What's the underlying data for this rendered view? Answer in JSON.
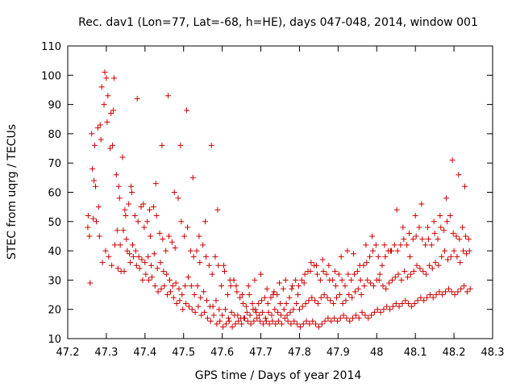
{
  "chart_data": {
    "type": "scatter",
    "title": "Rec. dav1 (Lon=77, Lat=-68, h=HE), days 047-048, 2014, window 001",
    "xlabel": "GPS time / Days of year 2014",
    "ylabel": "STEC from uqrg / TECUs",
    "xlim": [
      47.2,
      48.3
    ],
    "ylim": [
      10,
      110
    ],
    "xticks": [
      "47.2",
      "47.3",
      "47.4",
      "47.5",
      "47.6",
      "47.7",
      "47.8",
      "47.9",
      "48",
      "48.1",
      "48.2",
      "48.3"
    ],
    "yticks": [
      "10",
      "20",
      "30",
      "40",
      "50",
      "60",
      "70",
      "80",
      "90",
      "100",
      "110"
    ],
    "marker": "plus",
    "color": "#cc0000",
    "grid": false,
    "series": [
      {
        "x": [
          47.253,
          47.262,
          47.27,
          47.278,
          47.286,
          47.294,
          47.302,
          47.31,
          47.318,
          47.326,
          47.334,
          47.342,
          47.35,
          47.358,
          47.366,
          47.374,
          47.382,
          47.39,
          47.398,
          47.406,
          47.414,
          47.422,
          47.43,
          47.438,
          47.446,
          47.454,
          47.462,
          47.47,
          47.478,
          47.486,
          47.494,
          47.502,
          47.51,
          47.518,
          47.526,
          47.534,
          47.542,
          47.55,
          47.558,
          47.566,
          47.574,
          47.582,
          47.59,
          47.598,
          47.606,
          47.614,
          47.622,
          47.63,
          47.638,
          47.646,
          47.654,
          47.662,
          47.67,
          47.678,
          47.686,
          47.694,
          47.702,
          47.71,
          47.718,
          47.726,
          47.734,
          47.742,
          47.75,
          47.758,
          47.766,
          47.774,
          47.782,
          47.79,
          47.798,
          47.806,
          47.814,
          47.822,
          47.83,
          47.838,
          47.846,
          47.854,
          47.862,
          47.87,
          47.878,
          47.886,
          47.894,
          47.902,
          47.91,
          47.918,
          47.926,
          47.934,
          47.942,
          47.95,
          47.958,
          47.966,
          47.974,
          47.982,
          47.99,
          47.998,
          48.006,
          48.014,
          48.022,
          48.03,
          48.038,
          48.046,
          48.054,
          48.062,
          48.07,
          48.078,
          48.086,
          48.094,
          48.102,
          48.11,
          48.118,
          48.126,
          48.134,
          48.142,
          48.15,
          48.158,
          48.166,
          48.174,
          48.182,
          48.19,
          48.198,
          48.206,
          48.214,
          48.222,
          48.23,
          48.238
        ],
        "y": [
          52,
          80,
          76,
          82,
          78,
          90,
          84,
          75,
          88,
          66,
          58,
          72,
          52,
          56,
          60,
          52,
          50,
          55,
          48,
          50,
          45,
          55,
          52,
          46,
          44,
          40,
          45,
          43,
          41,
          58,
          50,
          45,
          48,
          40,
          38,
          40,
          36,
          42,
          38,
          35,
          32,
          38,
          35,
          28,
          33,
          25,
          28,
          30,
          26,
          24,
          22,
          21,
          25,
          22,
          20,
          22,
          23,
          24,
          22,
          24,
          26,
          25,
          22,
          27,
          22,
          24,
          28,
          30,
          28,
          30,
          32,
          33,
          36,
          35,
          32,
          30,
          33,
          32,
          30,
          30,
          28,
          32,
          30,
          28,
          32,
          30,
          32,
          33,
          30,
          35,
          36,
          38,
          40,
          42,
          30,
          35,
          38,
          40,
          40,
          42,
          40,
          42,
          44,
          42,
          38,
          44,
          45,
          48,
          44,
          42,
          44,
          42,
          46,
          44,
          48,
          47,
          50,
          52,
          46,
          45,
          44,
          48,
          45,
          44
        ]
      },
      {
        "x": [
          47.256,
          47.264,
          47.272,
          47.28,
          47.288,
          47.296,
          47.304,
          47.312,
          47.32,
          47.328,
          47.336,
          47.344,
          47.352,
          47.36,
          47.368,
          47.376,
          47.384,
          47.392,
          47.4,
          47.408,
          47.416,
          47.424,
          47.432,
          47.44,
          47.448,
          47.456,
          47.464,
          47.472,
          47.48,
          47.488,
          47.496,
          47.504,
          47.512,
          47.52,
          47.528,
          47.536,
          47.544,
          47.552,
          47.56,
          47.568,
          47.576,
          47.584,
          47.592,
          47.6,
          47.608,
          47.616,
          47.624,
          47.632,
          47.64,
          47.648,
          47.656,
          47.664,
          47.672,
          47.68,
          47.688,
          47.696,
          47.704,
          47.712,
          47.72,
          47.728,
          47.736,
          47.744,
          47.752,
          47.76,
          47.768,
          47.776,
          47.784,
          47.792,
          47.8,
          47.808,
          47.816,
          47.824,
          47.832,
          47.84,
          47.848,
          47.856,
          47.864,
          47.872,
          47.88,
          47.888,
          47.896,
          47.904,
          47.912,
          47.92,
          47.928,
          47.936,
          47.944,
          47.952,
          47.96,
          47.968,
          47.976,
          47.984,
          47.992,
          48.0,
          48.008,
          48.016,
          48.024,
          48.032,
          48.04,
          48.048,
          48.056,
          48.064,
          48.072,
          48.08,
          48.088,
          48.096,
          48.104,
          48.112,
          48.12,
          48.128,
          48.136,
          48.144,
          48.152,
          48.16,
          48.168,
          48.176,
          48.184,
          48.192,
          48.2,
          48.208,
          48.216,
          48.224,
          48.232,
          48.24
        ],
        "y": [
          45,
          68,
          62,
          55,
          96,
          101,
          93,
          87,
          99,
          47,
          42,
          47,
          44,
          39,
          42,
          40,
          38,
          37,
          36,
          38,
          35,
          39,
          34,
          36,
          33,
          32,
          30,
          28,
          29,
          27,
          25,
          28,
          31,
          28,
          25,
          28,
          24,
          26,
          23,
          21,
          21,
          23,
          20,
          18,
          20,
          17,
          19,
          18,
          18,
          17,
          17,
          19,
          18,
          20,
          19,
          18,
          19,
          17,
          19,
          18,
          20,
          19,
          18,
          20,
          18,
          19,
          20,
          22,
          20,
          21,
          22,
          23,
          24,
          23,
          22,
          24,
          25,
          24,
          23,
          22,
          24,
          25,
          22,
          23,
          25,
          24,
          26,
          27,
          25,
          28,
          30,
          29,
          28,
          30,
          32,
          28,
          27,
          29,
          30,
          31,
          32,
          30,
          33,
          31,
          32,
          33,
          35,
          34,
          33,
          32,
          35,
          34,
          36,
          35,
          38,
          40,
          37,
          38,
          40,
          38,
          36,
          40,
          39,
          40
        ]
      },
      {
        "x": [
          47.258,
          47.266,
          47.274,
          47.282,
          47.29,
          47.298,
          47.306,
          47.314,
          47.322,
          47.33,
          47.338,
          47.346,
          47.354,
          47.362,
          47.37,
          47.378,
          47.386,
          47.394,
          47.402,
          47.41,
          47.418,
          47.426,
          47.434,
          47.442,
          47.45,
          47.458,
          47.466,
          47.474,
          47.482,
          47.49,
          47.498,
          47.506,
          47.514,
          47.522,
          47.53,
          47.538,
          47.546,
          47.554,
          47.562,
          47.57,
          47.578,
          47.586,
          47.594,
          47.602,
          47.61,
          47.618,
          47.626,
          47.634,
          47.642,
          47.65,
          47.658,
          47.666,
          47.674,
          47.682,
          47.69,
          47.698,
          47.706,
          47.714,
          47.722,
          47.73,
          47.738,
          47.746,
          47.754,
          47.762,
          47.77,
          47.778,
          47.786,
          47.794,
          47.802,
          47.81,
          47.818,
          47.826,
          47.834,
          47.842,
          47.85,
          47.858,
          47.866,
          47.874,
          47.882,
          47.89,
          47.898,
          47.906,
          47.914,
          47.922,
          47.93,
          47.938,
          47.946,
          47.954,
          47.962,
          47.97,
          47.978,
          47.986,
          47.994,
          48.002,
          48.01,
          48.018,
          48.026,
          48.034,
          48.042,
          48.05,
          48.058,
          48.066,
          48.074,
          48.082,
          48.09,
          48.098,
          48.106,
          48.114,
          48.122,
          48.13,
          48.138,
          48.146,
          48.154,
          48.162,
          48.17,
          48.178,
          48.186,
          48.194,
          48.202,
          48.21,
          48.218,
          48.226,
          48.234,
          48.242
        ],
        "y": [
          29,
          51,
          50,
          45,
          36,
          40,
          38,
          35,
          42,
          34,
          33,
          33,
          40,
          36,
          38,
          35,
          34,
          30,
          32,
          30,
          31,
          28,
          26,
          27,
          28,
          25,
          26,
          24,
          22,
          23,
          20,
          22,
          21,
          20,
          19,
          21,
          18,
          19,
          17,
          16,
          18,
          15,
          16,
          14,
          15,
          16,
          14,
          15,
          16,
          15,
          17,
          16,
          15,
          16,
          17,
          16,
          15,
          16,
          15,
          16,
          15,
          16,
          15,
          17,
          16,
          15,
          16,
          15,
          14,
          15,
          16,
          15,
          16,
          15,
          14,
          15,
          16,
          17,
          16,
          17,
          16,
          17,
          18,
          17,
          16,
          17,
          18,
          17,
          19,
          18,
          17,
          18,
          19,
          20,
          19,
          20,
          21,
          20,
          21,
          22,
          21,
          22,
          23,
          22,
          21,
          22,
          23,
          24,
          23,
          24,
          25,
          24,
          25,
          26,
          25,
          26,
          27,
          26,
          25,
          26,
          27,
          28,
          26,
          27
        ]
      },
      {
        "x": [
          47.252,
          47.268,
          47.284,
          47.3,
          47.316,
          47.332,
          47.348,
          47.364,
          47.38,
          47.396,
          47.412,
          47.428,
          47.444,
          47.46,
          47.476,
          47.492,
          47.508,
          47.524,
          47.54,
          47.556,
          47.572,
          47.588,
          47.604,
          47.62,
          47.636,
          47.652,
          47.668,
          47.684,
          47.7,
          47.716,
          47.732,
          47.748,
          47.764,
          47.78,
          47.796,
          47.812,
          47.828,
          47.844,
          47.86,
          47.876,
          47.892,
          47.908,
          47.924,
          47.94,
          47.956,
          47.972,
          47.988,
          48.004,
          48.02,
          48.036,
          48.052,
          48.068,
          48.084,
          48.1,
          48.116,
          48.132,
          48.148,
          48.164,
          48.18,
          48.196,
          48.212,
          48.228
        ],
        "y": [
          48,
          64,
          83,
          99,
          76,
          62,
          54,
          62,
          92,
          56,
          54,
          63,
          76,
          93,
          60,
          76,
          88,
          65,
          45,
          50,
          76,
          54,
          35,
          30,
          28,
          25,
          28,
          30,
          32,
          27,
          25,
          29,
          30,
          27,
          25,
          29,
          33,
          35,
          37,
          35,
          33,
          38,
          40,
          39,
          35,
          42,
          45,
          38,
          42,
          40,
          54,
          48,
          46,
          52,
          56,
          48,
          50,
          52,
          58,
          71,
          66,
          62
        ]
      }
    ]
  }
}
